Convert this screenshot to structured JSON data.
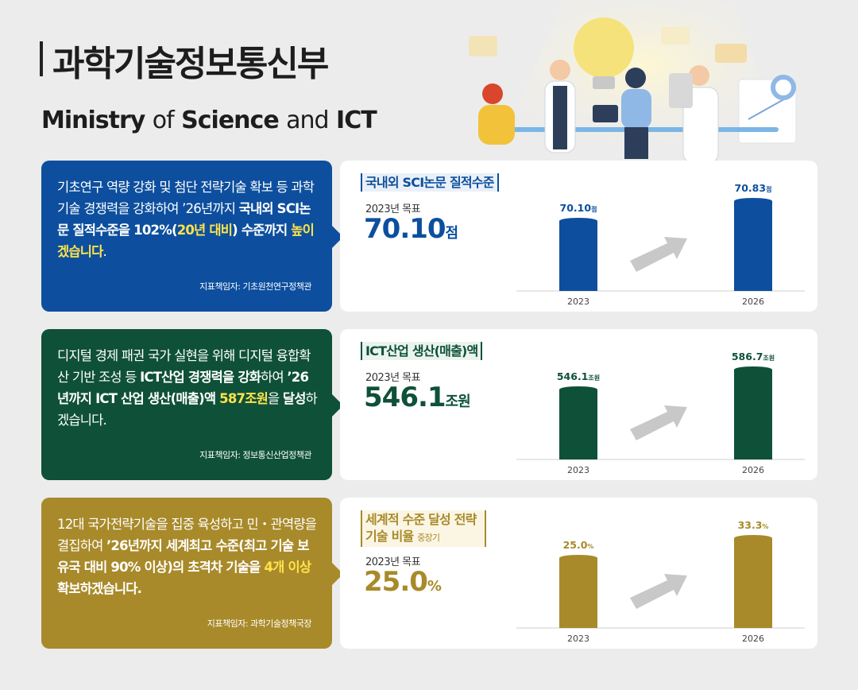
{
  "header": {
    "title_ko": "과학기술정보통신부",
    "title_en_1": "Ministry",
    "title_en_2": "of",
    "title_en_3": "Science",
    "title_en_4": "and",
    "title_en_5": "ICT"
  },
  "sections": [
    {
      "color": "#0d4f9e",
      "desc_parts": [
        {
          "t": "기초연구 역량 강화 및 첨단 전략기술 확보 등 과학기술 경쟁력을 강화하여 ’26년까지 ",
          "s": ""
        },
        {
          "t": "국내외 SCI논문 질적수준을 102%(",
          "s": "b"
        },
        {
          "t": "20년 대비",
          "s": "hl"
        },
        {
          "t": ") 수준까지 ",
          "s": "b"
        },
        {
          "t": "높이겠습니다",
          "s": "hl"
        },
        {
          "t": ".",
          "s": ""
        }
      ],
      "owner": "지표책임자: 기초원천연구정책관",
      "card_title": "국내외 SCI논문 질적수준",
      "card_title_small": "",
      "goal_label": "2023년 목표",
      "goal_value": "70.10",
      "goal_unit": "점",
      "chart_data": {
        "type": "bar",
        "categories": [
          "2023",
          "2026"
        ],
        "values": [
          70.1,
          70.83
        ],
        "value_labels": [
          "70.10",
          "70.83"
        ],
        "label_unit": "점",
        "ylim": [
          0,
          75
        ]
      }
    },
    {
      "color": "#0f5138",
      "desc_parts": [
        {
          "t": "디지털 경제 패권 국가 실현을 위해 디지털 융합확산 기반 조성 등 ",
          "s": ""
        },
        {
          "t": "ICT산업 경쟁력을 강화",
          "s": "b"
        },
        {
          "t": "하여 ",
          "s": ""
        },
        {
          "t": "’26년까지 ICT 산업 생산(매출)액 ",
          "s": "b"
        },
        {
          "t": "587조원",
          "s": "hl"
        },
        {
          "t": "을 ",
          "s": ""
        },
        {
          "t": "달성",
          "s": "b"
        },
        {
          "t": "하겠습니다.",
          "s": ""
        }
      ],
      "owner": "지표책임자: 정보통신산업정책관",
      "card_title": "ICT산업 생산(매출)액",
      "card_title_small": "",
      "goal_label": "2023년 목표",
      "goal_value": "546.1",
      "goal_unit": "조원",
      "chart_data": {
        "type": "bar",
        "categories": [
          "2023",
          "2026"
        ],
        "values": [
          546.1,
          586.7
        ],
        "value_labels": [
          "546.1",
          "586.7"
        ],
        "label_unit": "조원",
        "ylim": [
          0,
          620
        ]
      }
    },
    {
      "color": "#a88a2a",
      "desc_parts": [
        {
          "t": "12대 국가전략기술을 집중 육성하고 민・관역량을 결집하여 ",
          "s": ""
        },
        {
          "t": "’26년까지 세계최고 수준(최고 기술 보유국 대비 90% 이상)의 초격차 기술을 ",
          "s": "b"
        },
        {
          "t": "4개 이상",
          "s": "hl"
        },
        {
          "t": " 확보하겠습니다.",
          "s": "b"
        }
      ],
      "owner": "지표책임자: 과학기술정책국장",
      "card_title": "세계적 수준 달성 전략기술 비율",
      "card_title_small": "중장기",
      "goal_label": "2023년 목표",
      "goal_value": "25.0",
      "goal_unit": "%",
      "chart_data": {
        "type": "bar",
        "categories": [
          "2023",
          "2026"
        ],
        "values": [
          25.0,
          33.3
        ],
        "value_labels": [
          "25.0",
          "33.3"
        ],
        "label_unit": "%",
        "ylim": [
          0,
          35
        ]
      }
    }
  ]
}
